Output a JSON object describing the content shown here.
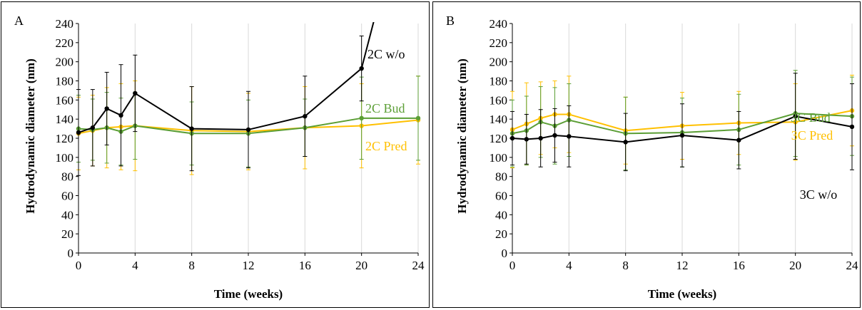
{
  "chart_data": [
    {
      "type": "line",
      "panel_letter": "A",
      "xlabel": "Time (weeks)",
      "ylabel": "Hydrodynamic diameter (nm)",
      "xlim": [
        0,
        24
      ],
      "ylim": [
        0,
        240
      ],
      "xticks": [
        0,
        4,
        8,
        12,
        16,
        20,
        24
      ],
      "yticks": [
        0,
        20,
        40,
        60,
        80,
        100,
        120,
        140,
        160,
        180,
        200,
        220,
        240
      ],
      "grid": "vertical",
      "series": [
        {
          "name": "2C Pred",
          "color": "#FFC000",
          "x": [
            0,
            1,
            2,
            3,
            4,
            8,
            12,
            16,
            20,
            24
          ],
          "y": [
            125,
            128,
            131,
            132,
            133,
            128,
            127,
            131,
            133,
            139
          ],
          "err": [
            38,
            37,
            42,
            45,
            47,
            46,
            40,
            43,
            44,
            46
          ]
        },
        {
          "name": "2C Bud",
          "color": "#5B9E35",
          "x": [
            0,
            1,
            2,
            3,
            4,
            8,
            12,
            16,
            20,
            24
          ],
          "y": [
            130,
            129,
            131,
            127,
            133,
            125,
            125,
            131,
            141,
            141
          ],
          "err": [
            35,
            32,
            37,
            35,
            35,
            33,
            35,
            30,
            43,
            44
          ]
        },
        {
          "name": "2C w/o",
          "color": "#000000",
          "x": [
            0,
            1,
            2,
            3,
            4,
            8,
            12,
            16,
            20,
            21
          ],
          "y": [
            126,
            131,
            151,
            144,
            167,
            130,
            129,
            143,
            193,
            250
          ],
          "err": [
            45,
            40,
            38,
            53,
            40,
            44,
            40,
            42,
            34,
            0
          ]
        }
      ],
      "annotations": [
        "2C w/o",
        "2C Bud",
        "2C Pred"
      ]
    },
    {
      "type": "line",
      "panel_letter": "B",
      "xlabel": "Time (weeks)",
      "ylabel": "Hydrodynamic diameter (nm)",
      "xlim": [
        0,
        24
      ],
      "ylim": [
        0,
        240
      ],
      "xticks": [
        0,
        4,
        8,
        12,
        16,
        20,
        24
      ],
      "yticks": [
        0,
        20,
        40,
        60,
        80,
        100,
        120,
        140,
        160,
        180,
        200,
        220,
        240
      ],
      "grid": "vertical",
      "series": [
        {
          "name": "3C Pred",
          "color": "#FFC000",
          "x": [
            0,
            1,
            2,
            3,
            4,
            8,
            12,
            16,
            20,
            24
          ],
          "y": [
            129,
            135,
            141,
            145,
            145,
            128,
            133,
            136,
            137,
            149
          ],
          "err": [
            40,
            43,
            38,
            35,
            40,
            35,
            35,
            33,
            40,
            37
          ]
        },
        {
          "name": "3C Bud",
          "color": "#5B9E35",
          "x": [
            0,
            1,
            2,
            3,
            4,
            8,
            12,
            16,
            20,
            24
          ],
          "y": [
            125,
            128,
            137,
            133,
            139,
            125,
            126,
            129,
            146,
            143
          ],
          "err": [
            35,
            36,
            37,
            40,
            38,
            38,
            36,
            37,
            45,
            41
          ]
        },
        {
          "name": "3C w/o",
          "color": "#000000",
          "x": [
            0,
            1,
            2,
            3,
            4,
            8,
            12,
            16,
            20,
            24
          ],
          "y": [
            120,
            119,
            120,
            123,
            122,
            116,
            123,
            118,
            143,
            132
          ],
          "err": [
            28,
            26,
            30,
            28,
            32,
            30,
            33,
            30,
            45,
            45
          ]
        }
      ],
      "annotations": [
        "3C Bud",
        "3C Pred",
        "3C w/o"
      ]
    }
  ]
}
